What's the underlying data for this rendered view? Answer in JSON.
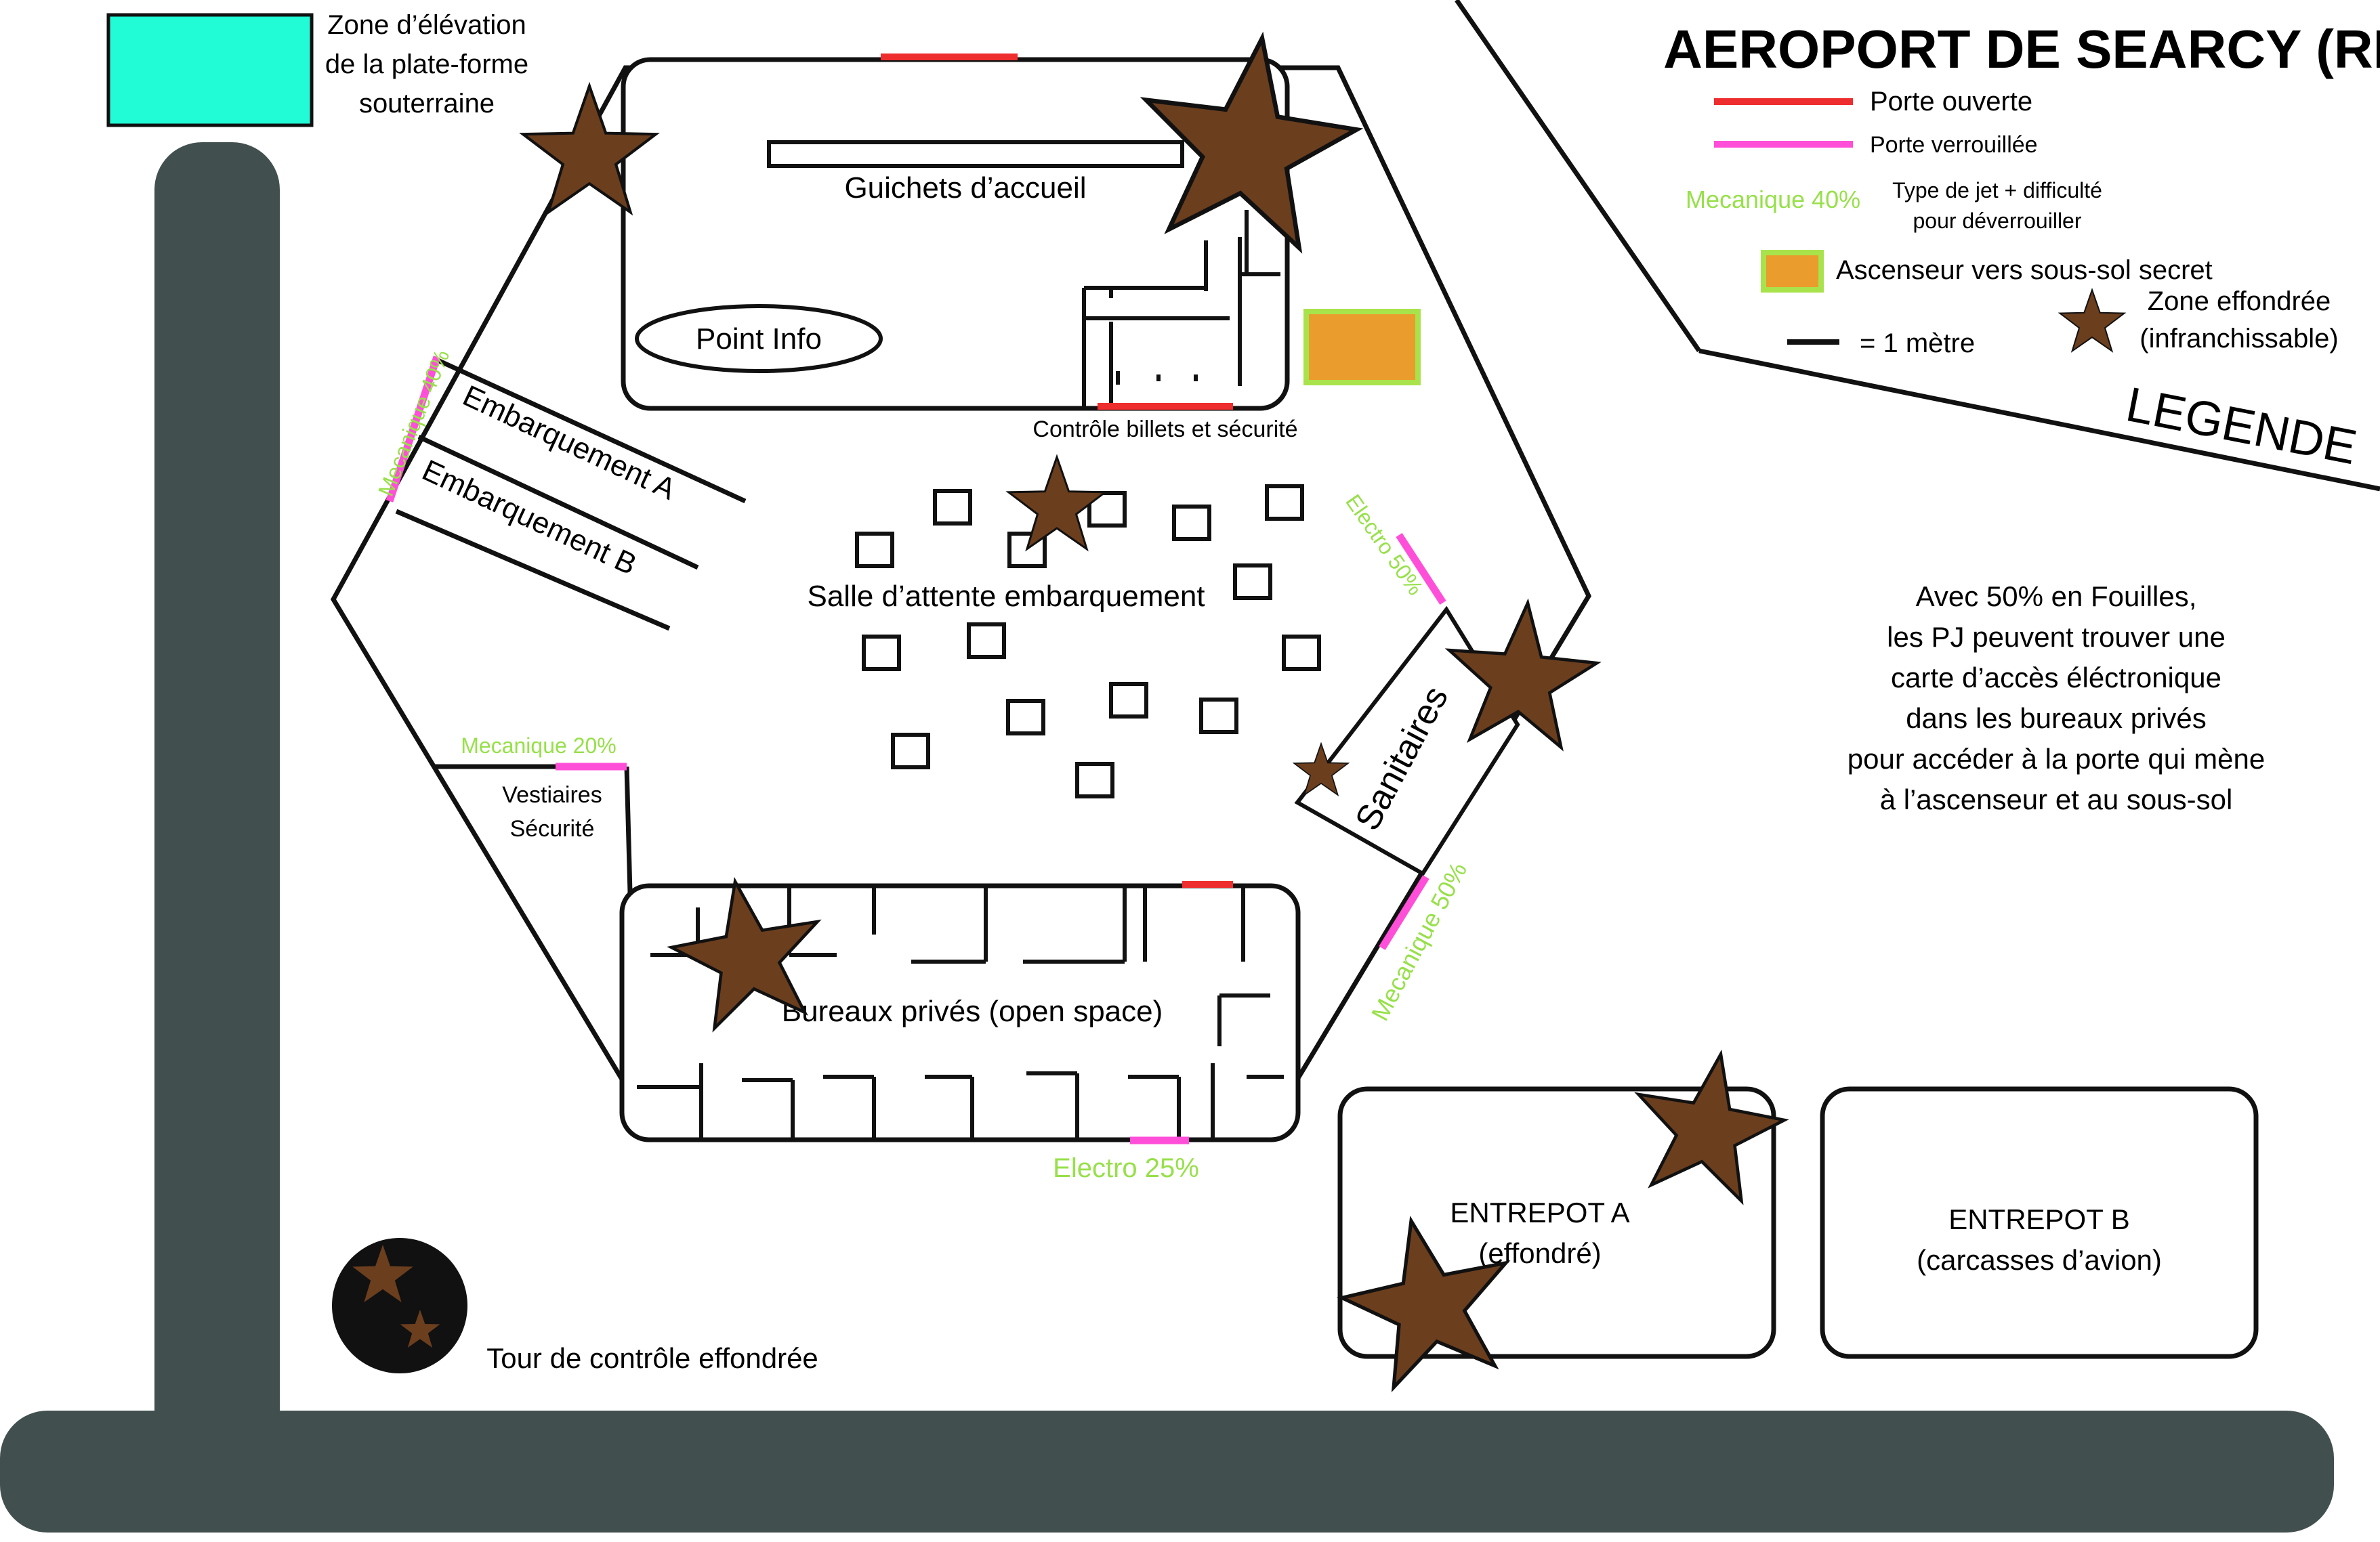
{
  "title": "AEROPORT DE SEARCY (RDC)",
  "colors": {
    "road": "#424f4f",
    "wall": "#111111",
    "door_open": "#ee2e2e",
    "door_locked": "#ff4fd8",
    "skill_text": "#97e04a",
    "elevator": "#ea9c2c",
    "elevator_border": "#a9e34b",
    "platform_zone": "#21fcd6",
    "collapsed_star": "#6b3e1e",
    "tower_fill": "#111111"
  },
  "legend": {
    "heading": "LEGENDE",
    "door_open": "Porte ouverte",
    "door_locked": "Porte verrouillée",
    "skill_example": "Mecanique 40%",
    "skill_desc_1": "Type de jet + difficulté",
    "skill_desc_2": "pour déverrouiller",
    "elevator": "Ascenseur vers sous-sol secret",
    "collapsed_1": "Zone effondrée",
    "collapsed_2": "(infranchissable)",
    "scale": "= 1 mètre"
  },
  "note": {
    "lines": [
      "Avec 50% en Fouilles,",
      "les PJ peuvent trouver une",
      "carte d’accès éléctronique",
      "dans les bureaux privés",
      "pour accéder à la porte qui mène",
      "à l’ascenseur et au sous-sol"
    ]
  },
  "labels": {
    "platform_zone": [
      "Zone d’élévation",
      "de la plate-forme",
      "souterraine"
    ],
    "guichets": "Guichets d’accueil",
    "point_info": "Point Info",
    "controle": "Contrôle billets et sécurité",
    "embarquement_a": "Embarquement A",
    "embarquement_b": "Embarquement B",
    "salle": "Salle d’attente embarquement",
    "sanitaires": "Sanitaires",
    "vestiaires": [
      "Vestiaires",
      "Sécurité"
    ],
    "bureaux": "Bureaux privés (open space)",
    "entrepot_a": [
      "ENTREPOT A",
      "(effondré)"
    ],
    "entrepot_b": [
      "ENTREPOT B",
      "(carcasses d’avion)"
    ],
    "tour": "Tour de contrôle effondrée"
  },
  "skills": {
    "mecanique_40": "Mecanique 40%",
    "electro_50": "Electro 50%",
    "mecanique_20": "Mecanique 20%",
    "mecanique_50": "Mecanique 50%",
    "electro_25": "Electro 25%"
  }
}
